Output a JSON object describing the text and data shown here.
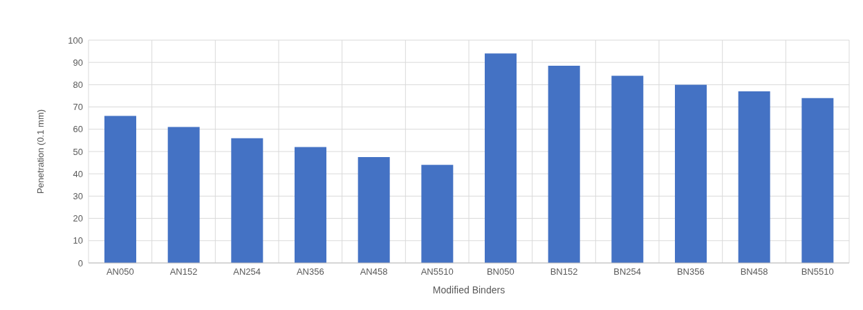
{
  "chart_data": {
    "type": "bar",
    "xlabel": "Modified Binders",
    "ylabel": "Penetration (0.1 mm)",
    "categories": [
      "AN050",
      "AN152",
      "AN254",
      "AN356",
      "AN458",
      "AN5510",
      "BN050",
      "BN152",
      "BN254",
      "BN356",
      "BN458",
      "BN5510"
    ],
    "values": [
      66,
      61,
      56,
      52,
      47.5,
      44,
      94,
      88.5,
      84,
      80,
      77,
      74
    ],
    "color": "#4472c4",
    "ylim": [
      0,
      100
    ],
    "yticks": [
      0,
      10,
      20,
      30,
      40,
      50,
      60,
      70,
      80,
      90,
      100
    ],
    "grid": true
  }
}
